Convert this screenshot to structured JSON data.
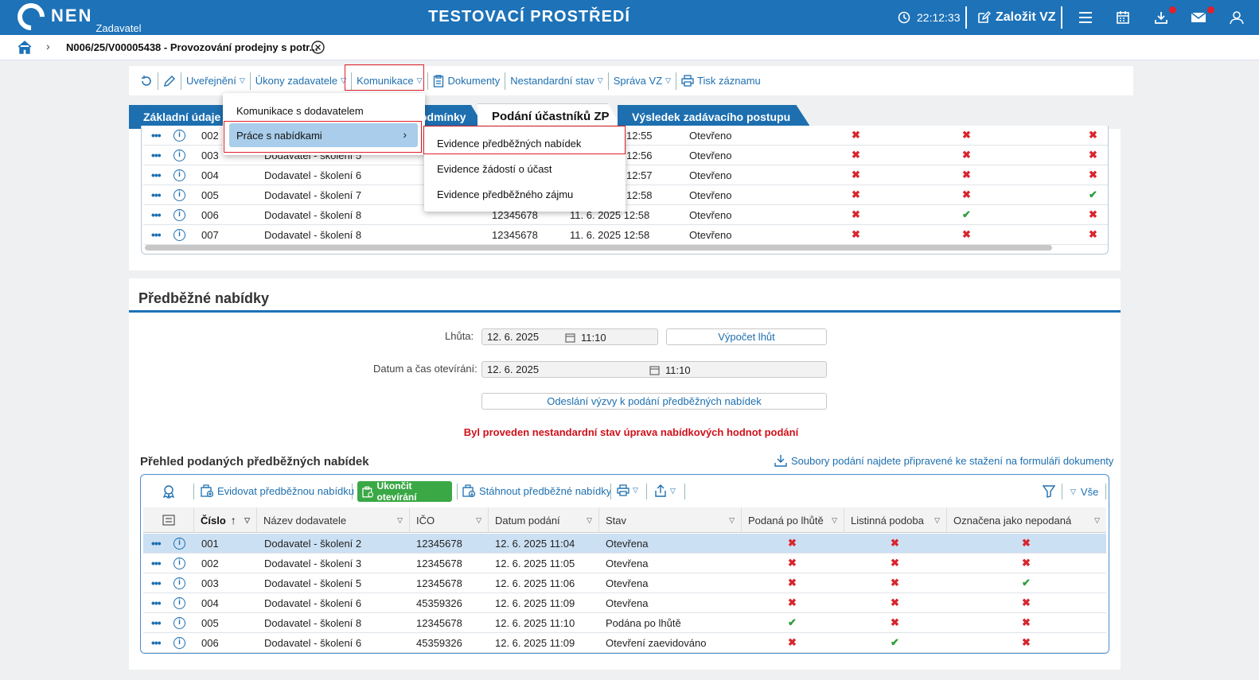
{
  "header": {
    "logo": "NEN",
    "logo_sub": "Zadavatel",
    "env_title": "TESTOVACÍ PROSTŘEDÍ",
    "time": "22:12:33",
    "create_label": "Založit VZ"
  },
  "breadcrumb": {
    "title": "N006/25/V00005438 - Provozování prodejny s potr..."
  },
  "toolbar": {
    "items": [
      "Uveřejnění",
      "Úkony zadavatele",
      "Komunikace",
      "Dokumenty",
      "Nestandardní stav",
      "Správa VZ",
      "Tisk záznamu"
    ]
  },
  "tabs": [
    "Základní údaje",
    "Podmínky",
    "Podání účastníků ZP",
    "Výsledek zadávacího postupu"
  ],
  "tab_partial": "odmínky",
  "menu": {
    "items": [
      "Komunikace s dodavatelem",
      "Práce s nabídkami"
    ],
    "submenu": [
      "Evidence předběžných nabídek",
      "Evidence žádostí o účast",
      "Evidence předběžného zájmu"
    ]
  },
  "upper_table": {
    "rows": [
      {
        "num": "002",
        "name": "",
        "ico": "",
        "date": "12:55",
        "state": "Otevřeno",
        "c1": "x",
        "c2": "x",
        "c3": "x"
      },
      {
        "num": "003",
        "name": "Dodavatel - školení 5",
        "ico": "",
        "date": "12:56",
        "state": "Otevřeno",
        "c1": "x",
        "c2": "x",
        "c3": "x"
      },
      {
        "num": "004",
        "name": "Dodavatel - školení 6",
        "ico": "",
        "date": "12:57",
        "state": "Otevřeno",
        "c1": "x",
        "c2": "x",
        "c3": "x"
      },
      {
        "num": "005",
        "name": "Dodavatel - školení 7",
        "ico": "",
        "date": "12:58",
        "state": "Otevřeno",
        "c1": "x",
        "c2": "x",
        "c3": "ok"
      },
      {
        "num": "006",
        "name": "Dodavatel - školení 8",
        "ico": "12345678",
        "date": "11. 6. 2025 12:58",
        "state": "Otevřeno",
        "c1": "x",
        "c2": "ok",
        "c3": "x"
      },
      {
        "num": "007",
        "name": "Dodavatel - školení 8",
        "ico": "12345678",
        "date": "11. 6. 2025 12:58",
        "state": "Otevřeno",
        "c1": "x",
        "c2": "x",
        "c3": "x"
      }
    ]
  },
  "section": {
    "title": "Předběžné nabídky",
    "deadline_label": "Lhůta:",
    "deadline_date": "12. 6. 2025",
    "deadline_time": "11:10",
    "calc_button": "Výpočet lhůt",
    "open_label": "Datum a čas otevírání:",
    "open_date": "12. 6. 2025",
    "open_time": "11:10",
    "send_button": "Odeslání výzvy k podání předběžných nabídek",
    "warning": "Byl proveden nestandardní stav úprava nabídkových hodnot podání"
  },
  "overview": {
    "title": "Přehled podaných předběžných nabídek",
    "download_link": "Soubory podání najdete připravené ke stažení na formuláři dokumenty",
    "btn_register": "Evidovat předběžnou nabídku",
    "btn_finish": "Ukončit otevírání",
    "btn_download": "Stáhnout předběžné nabídky",
    "filter_all": "Vše",
    "columns": [
      "Číslo",
      "Název dodavatele",
      "IČO",
      "Datum podání",
      "Stav",
      "Podaná po lhůtě",
      "Listinná podoba",
      "Označena jako nepodaná"
    ],
    "rows": [
      {
        "num": "001",
        "name": "Dodavatel - školení 2",
        "ico": "12345678",
        "date": "12. 6. 2025 11:04",
        "state": "Otevřena",
        "c1": "x",
        "c2": "x",
        "c3": "x"
      },
      {
        "num": "002",
        "name": "Dodavatel - školení 3",
        "ico": "12345678",
        "date": "12. 6. 2025 11:05",
        "state": "Otevřena",
        "c1": "x",
        "c2": "x",
        "c3": "x"
      },
      {
        "num": "003",
        "name": "Dodavatel - školení 5",
        "ico": "12345678",
        "date": "12. 6. 2025 11:06",
        "state": "Otevřena",
        "c1": "x",
        "c2": "x",
        "c3": "ok"
      },
      {
        "num": "004",
        "name": "Dodavatel - školení 6",
        "ico": "45359326",
        "date": "12. 6. 2025 11:09",
        "state": "Otevřena",
        "c1": "x",
        "c2": "x",
        "c3": "x"
      },
      {
        "num": "005",
        "name": "Dodavatel - školení 8",
        "ico": "12345678",
        "date": "12. 6. 2025 11:10",
        "state": "Podána po lhůtě",
        "c1": "ok",
        "c2": "x",
        "c3": "x"
      },
      {
        "num": "006",
        "name": "Dodavatel - školení 6",
        "ico": "45359326",
        "date": "12. 6. 2025 11:09",
        "state": "Otevření zaevidováno",
        "c1": "x",
        "c2": "ok",
        "c3": "x"
      }
    ]
  },
  "colors": {
    "brand": "#1d72b8",
    "tab": "#1d6fb0",
    "green": "#3aa845",
    "red": "#e0202a"
  }
}
